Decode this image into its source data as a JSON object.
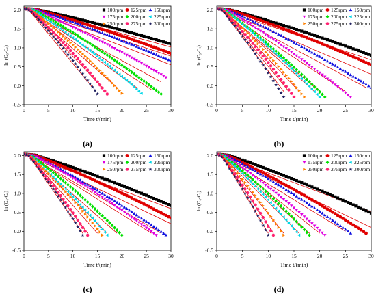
{
  "figure": {
    "marker_colors": {
      "100rpm": "#000000",
      "125rpm": "#e00000",
      "150rpm": "#1010e0",
      "175rpm": "#e000e0",
      "200rpm": "#00e000",
      "225rpm": "#00d8e8",
      "250rpm": "#ff8000",
      "275rpm": "#ff2070",
      "300rpm": "#202060"
    },
    "fit_line_color": "#e00000"
  },
  "chart_data": [
    {
      "panel": "(a)",
      "type": "scatter",
      "title": "",
      "xlabel": "Time t/(min)",
      "ylabel": "ln (C₀-Cₑ)",
      "xlim": [
        0,
        30
      ],
      "ylim": [
        -0.5,
        2.1
      ],
      "xticks": [
        "0",
        "5",
        "10",
        "15",
        "20",
        "25",
        "30"
      ],
      "yticks": [
        "-0.5",
        "0.0",
        "0.5",
        "1.0",
        "1.5",
        "2.0"
      ],
      "legend": "top-right",
      "grid": false,
      "series": [
        {
          "name": "100rpm",
          "marker": "square",
          "x": [
            0,
            30
          ],
          "y": [
            2.04,
            1.1
          ],
          "fit": [
            [
              1,
              2.05
            ],
            [
              30,
              1.02
            ]
          ]
        },
        {
          "name": "125rpm",
          "marker": "circle",
          "x": [
            0,
            30
          ],
          "y": [
            2.04,
            0.85
          ],
          "fit": [
            [
              1,
              2.0
            ],
            [
              30,
              0.78
            ]
          ]
        },
        {
          "name": "150rpm",
          "marker": "triangle",
          "x": [
            0,
            30
          ],
          "y": [
            2.04,
            0.65
          ],
          "fit": [
            [
              1,
              2.0
            ],
            [
              30,
              0.55
            ]
          ]
        },
        {
          "name": "175rpm",
          "marker": "triangle-down",
          "x": [
            0,
            29
          ],
          "y": [
            2.04,
            0.22
          ],
          "fit": [
            [
              1,
              2.0
            ],
            [
              28,
              0.1
            ]
          ]
        },
        {
          "name": "200rpm",
          "marker": "diamond",
          "x": [
            0,
            28
          ],
          "y": [
            2.04,
            -0.22
          ],
          "fit": [
            [
              1,
              2.0
            ],
            [
              26,
              -0.1
            ]
          ]
        },
        {
          "name": "225rpm",
          "marker": "triangle-left",
          "x": [
            0,
            24
          ],
          "y": [
            2.04,
            -0.2
          ],
          "fit": [
            [
              1,
              2.0
            ],
            [
              23,
              -0.05
            ]
          ]
        },
        {
          "name": "250rpm",
          "marker": "triangle-right",
          "x": [
            0,
            20
          ],
          "y": [
            2.04,
            -0.2
          ],
          "fit": [
            [
              1,
              2.0
            ],
            [
              19,
              -0.05
            ]
          ]
        },
        {
          "name": "275rpm",
          "marker": "hexagon",
          "x": [
            0,
            17
          ],
          "y": [
            2.04,
            -0.22
          ],
          "fit": [
            [
              1,
              2.0
            ],
            [
              16,
              -0.05
            ]
          ]
        },
        {
          "name": "300rpm",
          "marker": "star",
          "x": [
            0,
            15
          ],
          "y": [
            2.04,
            -0.22
          ],
          "fit": [
            [
              1,
              2.0
            ],
            [
              14,
              -0.05
            ]
          ]
        }
      ]
    },
    {
      "panel": "(b)",
      "type": "scatter",
      "title": "",
      "xlabel": "Time t/(min)",
      "ylabel": "ln (C₀-Cₑ)",
      "xlim": [
        0,
        30
      ],
      "ylim": [
        -0.5,
        2.1
      ],
      "xticks": [
        "0",
        "5",
        "10",
        "15",
        "20",
        "25",
        "30"
      ],
      "yticks": [
        "-0.5",
        "0.0",
        "0.5",
        "1.0",
        "1.5",
        "2.0"
      ],
      "legend": "top-right",
      "grid": false,
      "series": [
        {
          "name": "100rpm",
          "marker": "square",
          "x": [
            0,
            30
          ],
          "y": [
            2.04,
            0.8
          ],
          "fit": [
            [
              1,
              2.0
            ],
            [
              30,
              0.68
            ]
          ]
        },
        {
          "name": "125rpm",
          "marker": "circle",
          "x": [
            0,
            30
          ],
          "y": [
            2.04,
            0.55
          ],
          "fit": [
            [
              1,
              2.0
            ],
            [
              30,
              0.3
            ]
          ]
        },
        {
          "name": "150rpm",
          "marker": "triangle",
          "x": [
            0,
            30
          ],
          "y": [
            2.04,
            -0.05
          ],
          "fit": [
            [
              1,
              2.0
            ],
            [
              29,
              -0.05
            ]
          ]
        },
        {
          "name": "175rpm",
          "marker": "triangle-down",
          "x": [
            0,
            26
          ],
          "y": [
            2.04,
            -0.3
          ],
          "fit": [
            [
              1,
              2.0
            ],
            [
              25,
              -0.15
            ]
          ]
        },
        {
          "name": "200rpm",
          "marker": "diamond",
          "x": [
            0,
            21
          ],
          "y": [
            2.04,
            -0.3
          ],
          "fit": [
            [
              1,
              2.0
            ],
            [
              20,
              -0.15
            ]
          ]
        },
        {
          "name": "225rpm",
          "marker": "triangle-left",
          "x": [
            0,
            20
          ],
          "y": [
            2.04,
            -0.3
          ],
          "fit": [
            [
              1,
              2.0
            ],
            [
              19,
              -0.15
            ]
          ]
        },
        {
          "name": "250rpm",
          "marker": "triangle-right",
          "x": [
            0,
            17
          ],
          "y": [
            2.04,
            -0.3
          ],
          "fit": [
            [
              1,
              2.0
            ],
            [
              16,
              -0.15
            ]
          ]
        },
        {
          "name": "275rpm",
          "marker": "hexagon",
          "x": [
            0,
            15
          ],
          "y": [
            2.04,
            -0.3
          ],
          "fit": [
            [
              1,
              2.0
            ],
            [
              14,
              -0.15
            ]
          ]
        },
        {
          "name": "300rpm",
          "marker": "star",
          "x": [
            0,
            13
          ],
          "y": [
            2.04,
            -0.3
          ],
          "fit": [
            [
              1,
              2.0
            ],
            [
              13,
              -0.15
            ]
          ]
        }
      ]
    },
    {
      "panel": "(c)",
      "type": "scatter",
      "title": "",
      "xlabel": "Time t/(min)",
      "ylabel": "ln (C₀-Cₑ)",
      "xlim": [
        0,
        30
      ],
      "ylim": [
        -0.5,
        2.1
      ],
      "xticks": [
        "0",
        "5",
        "10",
        "15",
        "20",
        "25",
        "30"
      ],
      "yticks": [
        "-0.5",
        "0.0",
        "0.5",
        "1.0",
        "1.5",
        "2.0"
      ],
      "legend": "top-right",
      "grid": false,
      "series": [
        {
          "name": "100rpm",
          "marker": "square",
          "x": [
            0,
            30
          ],
          "y": [
            2.04,
            0.68
          ],
          "fit": [
            [
              1,
              2.0
            ],
            [
              30,
              0.6
            ]
          ]
        },
        {
          "name": "125rpm",
          "marker": "circle",
          "x": [
            0,
            30
          ],
          "y": [
            2.04,
            0.35
          ],
          "fit": [
            [
              1,
              2.0
            ],
            [
              30,
              0.2
            ]
          ]
        },
        {
          "name": "150rpm",
          "marker": "triangle",
          "x": [
            0,
            29
          ],
          "y": [
            2.04,
            -0.1
          ],
          "fit": [
            [
              1,
              2.0
            ],
            [
              28,
              -0.05
            ]
          ]
        },
        {
          "name": "175rpm",
          "marker": "triangle-down",
          "x": [
            0,
            27
          ],
          "y": [
            2.04,
            -0.1
          ],
          "fit": [
            [
              1,
              2.0
            ],
            [
              26,
              -0.05
            ]
          ]
        },
        {
          "name": "200rpm",
          "marker": "diamond",
          "x": [
            0,
            20
          ],
          "y": [
            2.04,
            -0.1
          ],
          "fit": [
            [
              1,
              2.0
            ],
            [
              19,
              -0.05
            ]
          ]
        },
        {
          "name": "225rpm",
          "marker": "triangle-left",
          "x": [
            0,
            17
          ],
          "y": [
            2.04,
            -0.1
          ],
          "fit": [
            [
              1,
              2.0
            ],
            [
              17,
              -0.05
            ]
          ]
        },
        {
          "name": "250rpm",
          "marker": "triangle-right",
          "x": [
            0,
            16
          ],
          "y": [
            2.04,
            -0.1
          ],
          "fit": [
            [
              1,
              2.0
            ],
            [
              15,
              -0.05
            ]
          ]
        },
        {
          "name": "275rpm",
          "marker": "hexagon",
          "x": [
            0,
            13
          ],
          "y": [
            2.04,
            -0.1
          ],
          "fit": [
            [
              1,
              2.0
            ],
            [
              13,
              -0.05
            ]
          ]
        },
        {
          "name": "300rpm",
          "marker": "star",
          "x": [
            0,
            12
          ],
          "y": [
            2.04,
            -0.1
          ],
          "fit": [
            [
              1,
              2.0
            ],
            [
              12,
              -0.05
            ]
          ]
        }
      ]
    },
    {
      "panel": "(d)",
      "type": "scatter",
      "title": "",
      "xlabel": "Time t/(min)",
      "ylabel": "ln (C₀-Cₑ)",
      "xlim": [
        0,
        30
      ],
      "ylim": [
        -0.5,
        2.1
      ],
      "xticks": [
        "0",
        "5",
        "10",
        "15",
        "20",
        "25",
        "30"
      ],
      "yticks": [
        "-0.5",
        "0.0",
        "0.5",
        "1.0",
        "1.5",
        "2.0"
      ],
      "legend": "top-right",
      "grid": false,
      "series": [
        {
          "name": "100rpm",
          "marker": "square",
          "x": [
            0,
            30
          ],
          "y": [
            2.04,
            0.48
          ],
          "fit": [
            [
              1,
              2.0
            ],
            [
              30,
              0.52
            ]
          ]
        },
        {
          "name": "125rpm",
          "marker": "circle",
          "x": [
            0,
            29
          ],
          "y": [
            2.04,
            -0.05
          ],
          "fit": [
            [
              1,
              2.0
            ],
            [
              30,
              0.1
            ]
          ]
        },
        {
          "name": "150rpm",
          "marker": "triangle",
          "x": [
            0,
            26
          ],
          "y": [
            2.04,
            -0.05
          ],
          "fit": [
            [
              1,
              2.0
            ],
            [
              25,
              0.0
            ]
          ]
        },
        {
          "name": "175rpm",
          "marker": "triangle-down",
          "x": [
            0,
            21
          ],
          "y": [
            2.04,
            -0.1
          ],
          "fit": [
            [
              1,
              2.0
            ],
            [
              20,
              -0.05
            ]
          ]
        },
        {
          "name": "200rpm",
          "marker": "diamond",
          "x": [
            0,
            18
          ],
          "y": [
            2.04,
            -0.1
          ],
          "fit": [
            [
              1,
              2.0
            ],
            [
              18,
              -0.05
            ]
          ]
        },
        {
          "name": "225rpm",
          "marker": "triangle-left",
          "x": [
            0,
            16
          ],
          "y": [
            2.04,
            -0.1
          ],
          "fit": [
            [
              1,
              2.0
            ],
            [
              16,
              -0.05
            ]
          ]
        },
        {
          "name": "250rpm",
          "marker": "triangle-right",
          "x": [
            0,
            13
          ],
          "y": [
            2.04,
            -0.1
          ],
          "fit": [
            [
              1,
              2.0
            ],
            [
              13,
              -0.05
            ]
          ]
        },
        {
          "name": "275rpm",
          "marker": "hexagon",
          "x": [
            0,
            11
          ],
          "y": [
            2.04,
            -0.1
          ],
          "fit": [
            [
              1,
              2.0
            ],
            [
              11,
              -0.05
            ]
          ]
        },
        {
          "name": "300rpm",
          "marker": "star",
          "x": [
            0,
            10
          ],
          "y": [
            2.04,
            -0.1
          ],
          "fit": [
            [
              1,
              2.0
            ],
            [
              10,
              -0.05
            ]
          ]
        }
      ]
    }
  ]
}
